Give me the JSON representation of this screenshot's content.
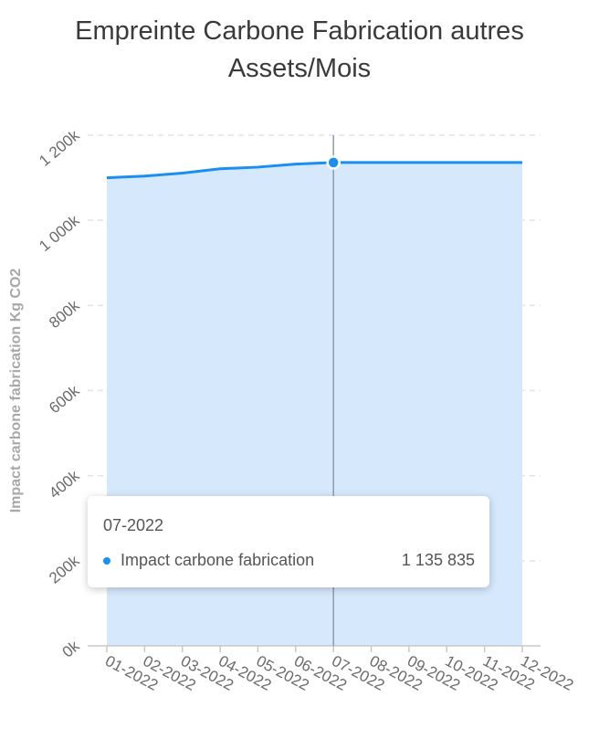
{
  "chart_data": {
    "type": "area",
    "title_lines": [
      "Empreinte Carbone Fabrication autres",
      "Assets/Mois"
    ],
    "xlabel": "",
    "ylabel": "Impact carbone fabrication Kg CO2",
    "categories": [
      "01-2022",
      "02-2022",
      "03-2022",
      "04-2022",
      "05-2022",
      "06-2022",
      "07-2022",
      "08-2022",
      "09-2022",
      "10-2022",
      "11-2022",
      "12-2022"
    ],
    "series": [
      {
        "name": "Impact carbone fabrication",
        "values": [
          1100000,
          1104000,
          1111000,
          1121000,
          1125000,
          1132000,
          1135835,
          1136000,
          1136000,
          1136000,
          1136000,
          1136000
        ]
      }
    ],
    "ylim": [
      0,
      1200000
    ],
    "y_ticks": [
      0,
      200000,
      400000,
      600000,
      800000,
      1000000,
      1200000
    ],
    "y_tick_labels": [
      "0k",
      "200k",
      "400k",
      "600k",
      "800k",
      "1 000k",
      "1 200k"
    ],
    "grid": true,
    "colors": {
      "line": "#1a8ff0",
      "fill": "#d6e8fc",
      "crosshair": "#8c9cae",
      "grid": "#e3e3e3"
    },
    "highlight": {
      "index": 6,
      "label": "07-2022",
      "series_name": "Impact carbone fabrication",
      "value_text": "1 135 835"
    }
  }
}
